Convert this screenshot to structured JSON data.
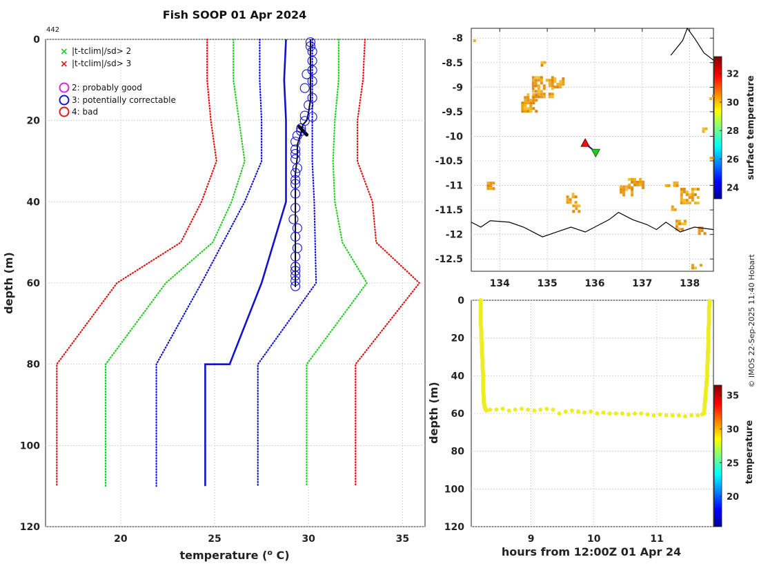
{
  "chart_data": [
    {
      "type": "line",
      "title": "Fish SOOP 01 Apr 2024",
      "id_label": "442",
      "xlabel": "temperature (",
      "xlabel_sup": "o",
      "xlabel_end": " C)",
      "ylabel": "depth (m)",
      "xlim": [
        16,
        36.2
      ],
      "ylim": [
        120,
        0
      ],
      "xticks": [
        20,
        25,
        30,
        35
      ],
      "yticks": [
        0,
        20,
        40,
        60,
        80,
        100,
        120
      ],
      "legend": {
        "position": "top-left",
        "cross_green": "|t-tclim|/sd> 2",
        "cross_red": "|t-tclim|/sd> 3",
        "flag2": "2: probably good",
        "flag3": "3: potentially correctable",
        "flag4": "4: bad"
      },
      "series": [
        {
          "name": "clim_mean",
          "style": "solid",
          "color": "#1010d0",
          "x": [
            28.8,
            28.7,
            28.8,
            28.8,
            27.5,
            25.8,
            24.5,
            24.5,
            24.5
          ],
          "y": [
            0,
            10,
            20,
            40,
            60,
            80,
            80,
            100,
            110
          ]
        },
        {
          "name": "clim_minus_1sd",
          "style": "dotted",
          "color": "#1010d0",
          "x": [
            27.4,
            27.4,
            27.5,
            27.5,
            26.6,
            24.3,
            21.9,
            21.9,
            21.9
          ],
          "y": [
            0,
            10,
            20,
            30,
            40,
            60,
            80,
            100,
            110
          ]
        },
        {
          "name": "clim_plus_1sd",
          "style": "dotted",
          "color": "#1010d0",
          "x": [
            30.2,
            30.2,
            30.2,
            30.2,
            30.3,
            30.4,
            27.3,
            27.3,
            27.3
          ],
          "y": [
            0,
            10,
            20,
            30,
            40,
            60,
            80,
            100,
            110
          ]
        },
        {
          "name": "clim_minus_2sd",
          "style": "dotted",
          "color": "#22cc22",
          "x": [
            26.0,
            26.0,
            26.3,
            26.6,
            25.9,
            24.9,
            22.4,
            19.2,
            19.2,
            19.2
          ],
          "y": [
            0,
            10,
            20,
            30,
            40,
            50,
            60,
            80,
            100,
            110
          ]
        },
        {
          "name": "clim_plus_2sd",
          "style": "dotted",
          "color": "#22cc22",
          "x": [
            31.6,
            31.6,
            31.4,
            31.3,
            31.4,
            31.8,
            33.1,
            29.9,
            29.9,
            29.9
          ],
          "y": [
            0,
            10,
            20,
            30,
            40,
            50,
            60,
            80,
            100,
            110
          ]
        },
        {
          "name": "clim_minus_3sd",
          "style": "dotted",
          "color": "#dd1111",
          "x": [
            24.6,
            24.6,
            24.8,
            25.1,
            24.3,
            23.2,
            19.8,
            16.6,
            16.6,
            16.6
          ],
          "y": [
            0,
            10,
            20,
            30,
            40,
            50,
            60,
            80,
            100,
            110
          ]
        },
        {
          "name": "clim_plus_3sd",
          "style": "dotted",
          "color": "#dd1111",
          "x": [
            33.0,
            32.9,
            32.6,
            32.6,
            33.4,
            33.6,
            35.9,
            32.5,
            32.5,
            32.5
          ],
          "y": [
            0,
            10,
            20,
            30,
            40,
            50,
            60,
            80,
            100,
            110
          ]
        },
        {
          "name": "profile",
          "style": "solid",
          "color": "#000000",
          "x": [
            30.1,
            30.1,
            30.1,
            30.1,
            30.0,
            29.9,
            29.7,
            29.6,
            29.4,
            29.4,
            29.3,
            29.3,
            29.3,
            29.3,
            29.3,
            29.3,
            29.3
          ],
          "y": [
            0,
            5,
            10,
            15,
            18,
            20,
            21,
            23,
            26,
            29,
            33,
            37,
            42,
            47,
            52,
            57,
            61
          ]
        }
      ],
      "flag3_points": {
        "x": [
          30.1,
          30.1,
          30.2,
          30.2,
          30.2,
          29.9,
          30.2,
          29.8,
          30.2,
          30.0,
          29.8,
          30.2,
          29.8,
          29.6,
          29.6,
          29.4,
          29.3,
          29.3,
          29.3,
          29.3,
          29.4,
          29.3,
          29.3,
          29.3,
          29.3,
          29.3,
          29.2,
          29.4,
          29.3,
          29.4,
          29.3,
          29.3,
          29.3,
          29.3,
          29.3,
          29.3
        ],
        "y": [
          0.7,
          1.7,
          3.0,
          5.3,
          7.6,
          8.6,
          10.3,
          12.0,
          14.4,
          16.2,
          18.8,
          19.1,
          20.1,
          21.9,
          22.6,
          23.7,
          25.2,
          27.1,
          28.2,
          29.5,
          31.7,
          32.9,
          34.6,
          35.6,
          38.0,
          41.5,
          44.3,
          46.5,
          48.6,
          51.4,
          53.5,
          56.0,
          57.0,
          58.2,
          59.5,
          60.8
        ]
      },
      "profile_heavy_segment": {
        "x": [
          29.5,
          29.9
        ],
        "y": [
          21.5,
          23.5
        ]
      }
    },
    {
      "type": "heatmap",
      "name": "surface temperature map",
      "xlim": [
        133.4,
        138.5
      ],
      "ylim": [
        -12.75,
        -7.8
      ],
      "xticks": [
        134,
        135,
        136,
        137,
        138
      ],
      "yticks": [
        -8,
        -8.5,
        -9,
        -9.5,
        -10,
        -10.5,
        -11,
        -11.5,
        -12,
        -12.5
      ],
      "ytick_labels": [
        "-8",
        "-8.5",
        "-9",
        "-9.5",
        "-10",
        "-10.5",
        "-11",
        "-11.5",
        "-12",
        "-12.5"
      ],
      "colorbar": {
        "label": "surface temperature",
        "ticks": [
          24,
          26,
          28,
          30,
          32
        ],
        "range": [
          23.2,
          33.2
        ]
      },
      "ship_track": {
        "lon": [
          135.8,
          136.02
        ],
        "lat": [
          -10.15,
          -10.32
        ]
      },
      "start_marker": {
        "lon": 135.8,
        "lat": -10.15,
        "color": "#ee1111"
      },
      "end_marker": {
        "lon": 136.02,
        "lat": -10.32,
        "color": "#22cc22"
      },
      "sst_patches": [
        {
          "lon": 134.9,
          "lat": -9.0,
          "w": 0.45,
          "h": 0.45
        },
        {
          "lon": 134.6,
          "lat": -9.3,
          "w": 0.3,
          "h": 0.35
        },
        {
          "lon": 135.2,
          "lat": -8.9,
          "w": 0.25,
          "h": 0.2
        },
        {
          "lon": 134.9,
          "lat": -8.5,
          "w": 0.08,
          "h": 0.06
        },
        {
          "lon": 133.8,
          "lat": -11.0,
          "w": 0.15,
          "h": 0.15
        },
        {
          "lon": 135.5,
          "lat": -11.25,
          "w": 0.2,
          "h": 0.2
        },
        {
          "lon": 135.6,
          "lat": -11.45,
          "w": 0.15,
          "h": 0.12
        },
        {
          "lon": 136.85,
          "lat": -10.95,
          "w": 0.3,
          "h": 0.2
        },
        {
          "lon": 136.65,
          "lat": -11.1,
          "w": 0.25,
          "h": 0.2
        },
        {
          "lon": 137.6,
          "lat": -10.97,
          "w": 0.25,
          "h": 0.1
        },
        {
          "lon": 138.0,
          "lat": -11.2,
          "w": 0.4,
          "h": 0.3
        },
        {
          "lon": 137.8,
          "lat": -11.8,
          "w": 0.2,
          "h": 0.2
        },
        {
          "lon": 137.65,
          "lat": -11.45,
          "w": 0.08,
          "h": 0.08
        },
        {
          "lon": 138.25,
          "lat": -11.9,
          "w": 0.15,
          "h": 0.12
        },
        {
          "lon": 138.1,
          "lat": -12.65,
          "w": 0.25,
          "h": 0.1
        },
        {
          "lon": 138.3,
          "lat": -9.85,
          "w": 0.08,
          "h": 0.06
        },
        {
          "lon": 138.45,
          "lat": -9.2,
          "w": 0.07,
          "h": 0.1
        },
        {
          "lon": 138.45,
          "lat": -10.4,
          "w": 0.06,
          "h": 0.08
        },
        {
          "lon": 133.5,
          "lat": -8.05,
          "w": 0.12,
          "h": 0.05
        }
      ],
      "coast_south": {
        "lon": [
          133.4,
          133.6,
          133.8,
          134.2,
          134.5,
          134.9,
          135.2,
          135.5,
          135.8,
          136.0,
          136.3,
          136.5,
          136.8,
          137.1,
          137.3,
          137.5,
          137.8,
          138.1,
          138.5
        ],
        "lat": [
          -11.75,
          -11.85,
          -11.72,
          -11.75,
          -11.85,
          -12.05,
          -11.95,
          -11.85,
          -11.95,
          -11.85,
          -11.7,
          -11.55,
          -11.7,
          -11.8,
          -11.9,
          -11.75,
          -11.95,
          -11.85,
          -11.9
        ]
      },
      "coast_north": {
        "lon": [
          137.6,
          137.85,
          137.95,
          138.1,
          138.3,
          138.5
        ],
        "lat": [
          -8.35,
          -8.05,
          -7.8,
          -8.0,
          -8.3,
          -8.45
        ]
      }
    },
    {
      "type": "scatter",
      "name": "depth-time section",
      "xlabel": "hours from 12:00Z 01 Apr 24",
      "ylabel": "depth (m)",
      "xlim": [
        8.05,
        11.9
      ],
      "ylim": [
        120,
        0
      ],
      "xticks": [
        9,
        10,
        11
      ],
      "yticks": [
        0,
        20,
        40,
        60,
        80,
        100,
        120
      ],
      "colorbar": {
        "label": "temperature",
        "ticks": [
          20,
          25,
          30,
          35
        ],
        "range": [
          15.5,
          36.5
        ]
      },
      "down_cast": {
        "x": [
          8.2,
          8.2,
          8.2,
          8.2,
          8.21,
          8.21,
          8.22,
          8.22,
          8.23,
          8.23,
          8.24,
          8.24,
          8.24,
          8.25,
          8.25,
          8.26,
          8.27,
          8.28,
          8.3
        ],
        "y": [
          0,
          4,
          8,
          12,
          16,
          20,
          24,
          28,
          32,
          36,
          40,
          44,
          48,
          52,
          54,
          56,
          57,
          58,
          58.5
        ]
      },
      "bottom_points": {
        "x": [
          8.35,
          8.45,
          8.55,
          8.65,
          8.75,
          8.85,
          8.95,
          9.05,
          9.15,
          9.25,
          9.35,
          9.45,
          9.55,
          9.65,
          9.75,
          9.85,
          9.95,
          10.05,
          10.15,
          10.25,
          10.35,
          10.45,
          10.55,
          10.65,
          10.75,
          10.85,
          10.95,
          11.05,
          11.15,
          11.25,
          11.35,
          11.45,
          11.55,
          11.65,
          11.72
        ],
        "y": [
          58,
          58,
          57.5,
          58.5,
          58,
          57.5,
          58,
          58.5,
          58,
          57.5,
          58,
          60,
          59,
          58.5,
          59,
          59.5,
          59,
          60,
          59.5,
          60,
          60,
          60,
          60.5,
          60,
          60,
          60.5,
          61,
          60.5,
          61,
          61,
          61,
          61.5,
          61,
          61,
          60.5
        ]
      },
      "up_cast": {
        "x": [
          11.75,
          11.76,
          11.77,
          11.78,
          11.79,
          11.8,
          11.8,
          11.81,
          11.81,
          11.82,
          11.82,
          11.82,
          11.83,
          11.83,
          11.83,
          11.84,
          11.84
        ],
        "y": [
          60,
          56,
          52,
          48,
          44,
          40,
          36,
          32,
          28,
          24,
          20,
          16,
          12,
          8,
          4,
          2,
          0
        ]
      },
      "point_color": "#eded22"
    }
  ],
  "side_text": "© IMOS 22-Sep-2025 11:40 Hobart"
}
